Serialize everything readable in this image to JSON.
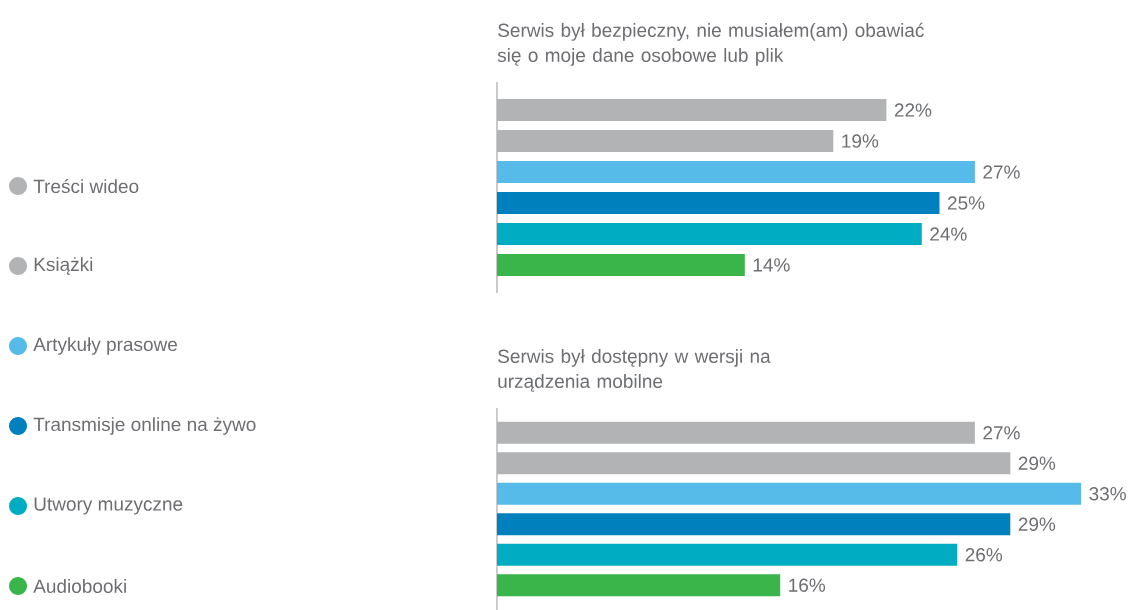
{
  "chart_data": [
    {
      "type": "bar",
      "orientation": "horizontal",
      "title": "Serwis był bezpieczny, nie musiałem(am) obawiać się o moje dane osobowe lub plik",
      "categories": [
        null
      ],
      "xlim": [
        0,
        27
      ],
      "legend": "left",
      "series": [
        {
          "name": "Treści wideo",
          "color": "#b1b3b4",
          "values": [
            22
          ],
          "value_labels": [
            "22%"
          ]
        },
        {
          "name": "Książki",
          "color": "#b1b3b4",
          "values": [
            19
          ],
          "value_labels": [
            "19%"
          ]
        },
        {
          "name": "Artykuły prasowe",
          "color": "#56bbe9",
          "values": [
            27
          ],
          "value_labels": [
            "27%"
          ]
        },
        {
          "name": "Transmisje online na żywo",
          "color": "#0080bc",
          "values": [
            25
          ],
          "value_labels": [
            "25%"
          ]
        },
        {
          "name": "Utwory muzyczne",
          "color": "#00acc1",
          "values": [
            24
          ],
          "value_labels": [
            "24%"
          ]
        },
        {
          "name": "Audiobooki",
          "color": "#39b54a",
          "values": [
            14
          ],
          "value_labels": [
            "14%"
          ]
        }
      ]
    },
    {
      "type": "bar",
      "orientation": "horizontal",
      "title": "Serwis był dostępny w wersji na urządzenia mobilne",
      "categories": [
        null
      ],
      "xlim": [
        0,
        33
      ],
      "series": [
        {
          "color": "#b1b3b4",
          "values": [
            27
          ],
          "value_labels": [
            "27%"
          ]
        },
        {
          "color": "#b1b3b4",
          "values": [
            29
          ],
          "value_labels": [
            "29%"
          ]
        },
        {
          "color": "#56bbe9",
          "values": [
            33
          ],
          "value_labels": [
            "33%"
          ]
        },
        {
          "color": "#0080bc",
          "values": [
            29
          ],
          "value_labels": [
            "29%"
          ]
        },
        {
          "color": "#00acc1",
          "values": [
            26
          ],
          "value_labels": [
            "26%"
          ]
        },
        {
          "color": "#39b54a",
          "values": [
            16
          ],
          "value_labels": [
            "16%"
          ]
        }
      ]
    }
  ]
}
